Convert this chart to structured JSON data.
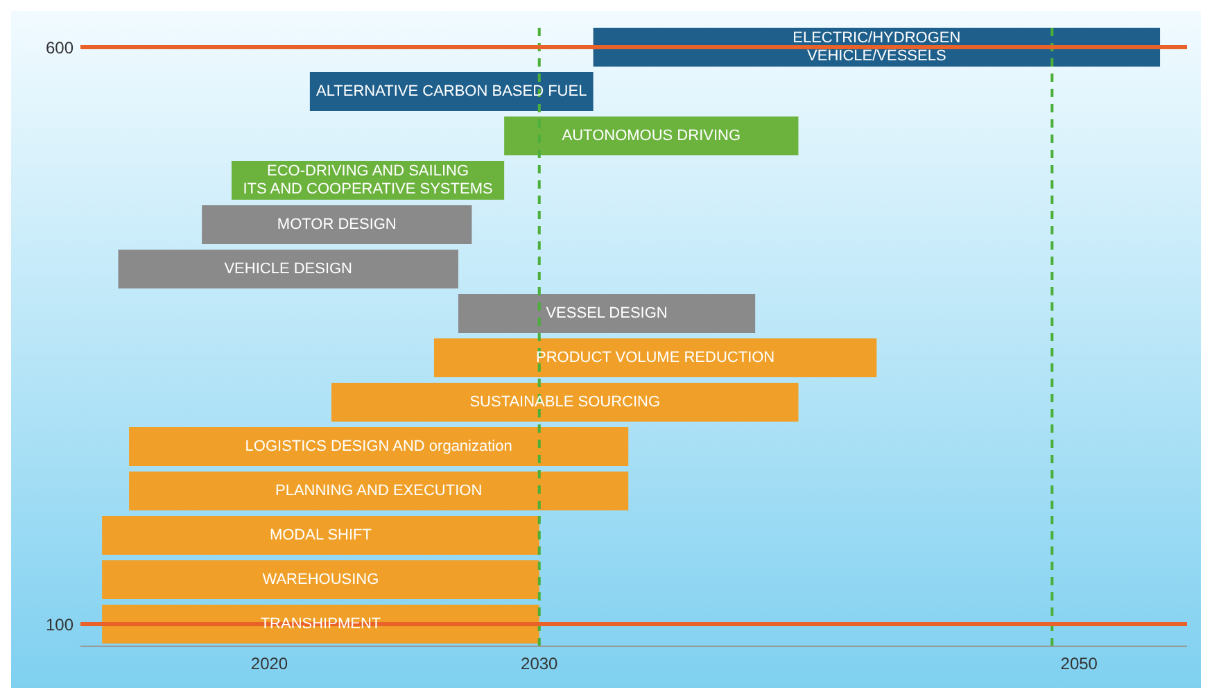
{
  "chart_data": {
    "type": "bar",
    "orientation": "horizontal",
    "stacked": true,
    "categories": [
      "ELECTRIC/HYDROGEN\nVEHICLE/VESSELS",
      "ALTERNATIVE CARBON BASED FUEL",
      "AUTONOMOUS DRIVING",
      "ECO-DRIVING AND SAILING\nITS AND COOPERATIVE SYSTEMS",
      "MOTOR DESIGN",
      "VEHICLE DESIGN",
      "VESSEL DESIGN",
      "PRODUCT VOLUME REDUCTION",
      "SUSTAINABLE SOURCING",
      "LOGISTICS DESIGN AND organization",
      "PLANNING AND EXECUTION",
      "MODAL SHIFT",
      "WAREHOUSING",
      "TRANSHIPMENT"
    ],
    "base": [
      2032,
      2021.5,
      2028.7,
      2018.6,
      2017.5,
      2014.4,
      2027,
      2026.1,
      2022.3,
      2014.8,
      2014.8,
      2013.8,
      2013.8,
      2013.8
    ],
    "values": [
      21,
      10.5,
      10.9,
      10.1,
      10,
      12.6,
      11,
      16.4,
      17.3,
      18.5,
      18.5,
      16.2,
      16.2,
      16.2
    ],
    "colors": [
      "#1f5f8b",
      "#1f5f8b",
      "#6cb33e",
      "#6cb33e",
      "#8a8a8a",
      "#8a8a8a",
      "#8a8a8a",
      "#f0a028",
      "#f0a028",
      "#f0a028",
      "#f0a028",
      "#f0a028",
      "#f0a028",
      "#f0a028"
    ],
    "xlim": [
      2013,
      2054
    ],
    "xticks": [
      2020,
      2030,
      2050
    ],
    "tick_labels": "x",
    "ref_lines": [
      {
        "axis": "x",
        "value": 2030,
        "label": null,
        "color": "#4caf3a",
        "line_style": "dashed"
      },
      {
        "axis": "x",
        "value": 2049,
        "label": null,
        "color": "#4caf3a",
        "line_style": "dashed"
      },
      {
        "axis": "y",
        "value": "ELECTRIC/HYDROGEN\nVEHICLE/VESSELS",
        "label": "600",
        "color": "#e8622a",
        "line_style": "solid"
      },
      {
        "axis": "y",
        "value": "TRANSHIPMENT",
        "label": "100",
        "color": "#e8622a",
        "line_style": "solid"
      }
    ]
  }
}
